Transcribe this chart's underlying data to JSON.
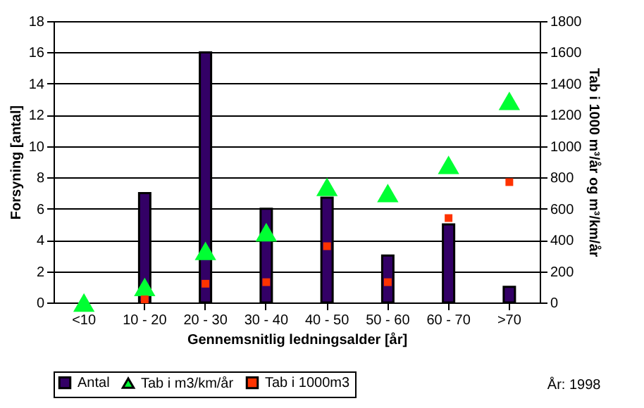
{
  "chart_data": {
    "type": "bar",
    "xlabel": "Gennemsnitlig ledningsalder [år]",
    "ylabel": "Forsyning [antal]",
    "y2label": "Tab i 1000 m³/år og m³/km/år",
    "categories": [
      "<10",
      "10 - 20",
      "20 - 30",
      "30 - 40",
      "40 - 50",
      "50 - 60",
      "60 - 70",
      ">70"
    ],
    "series": [
      {
        "name": "Antal",
        "color": "#330066",
        "values": [
          null,
          7,
          16,
          6,
          6.7,
          3,
          5,
          1
        ]
      },
      {
        "name": "Tab i m3/km/år",
        "type": "scatter",
        "marker": "triangle",
        "axis": "y2",
        "color": "#00ff33",
        "values": [
          0,
          100,
          330,
          450,
          740,
          700,
          880,
          1290
        ]
      },
      {
        "name": "Tab i 1000m3",
        "type": "scatter",
        "marker": "square",
        "axis": "y2",
        "color": "#ff3300",
        "values": [
          null,
          20,
          120,
          130,
          360,
          130,
          540,
          770
        ]
      }
    ],
    "ylim": [
      0,
      18
    ],
    "yticks": [
      0,
      2,
      4,
      6,
      8,
      10,
      12,
      14,
      16,
      18
    ],
    "y2lim": [
      0,
      1800
    ],
    "y2ticks": [
      0,
      200,
      400,
      600,
      800,
      1000,
      1200,
      1400,
      1600,
      1800
    ],
    "grid": "y",
    "legend": "bottom",
    "annotations": [
      "År: 1998"
    ]
  }
}
